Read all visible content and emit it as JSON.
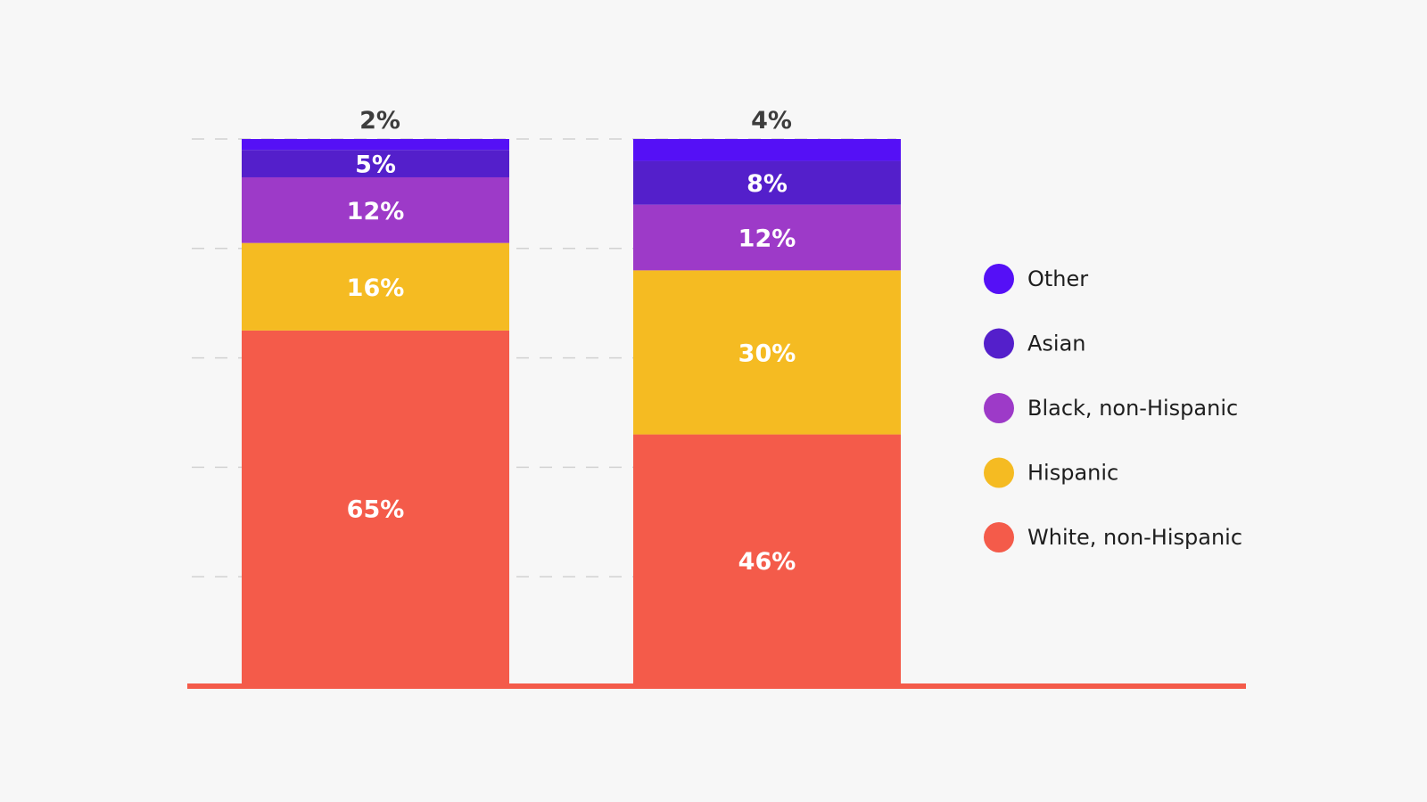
{
  "chart_data": {
    "type": "bar",
    "stacked": true,
    "categories": [
      "",
      ""
    ],
    "series": [
      {
        "name": "White, non-Hispanic",
        "color": "#f45b4a",
        "values": [
          65,
          46
        ]
      },
      {
        "name": "Hispanic",
        "color": "#f5bb22",
        "values": [
          16,
          30
        ]
      },
      {
        "name": "Black, non-Hispanic",
        "color": "#9d3ac8",
        "values": [
          12,
          12
        ]
      },
      {
        "name": "Asian",
        "color": "#541fcb",
        "values": [
          5,
          8
        ]
      },
      {
        "name": "Other",
        "color": "#5510f6",
        "values": [
          2,
          4
        ]
      }
    ],
    "data_labels": [
      [
        "65%",
        "16%",
        "12%",
        "5%",
        "2%"
      ],
      [
        "46%",
        "30%",
        "12%",
        "8%",
        "4%"
      ]
    ],
    "ylim": [
      0,
      100
    ],
    "grid": "dashed-horizontal",
    "legend_position": "right",
    "legend_order": [
      "Other",
      "Asian",
      "Black, non-Hispanic",
      "Hispanic",
      "White, non-Hispanic"
    ],
    "title": "",
    "xlabel": "",
    "ylabel": ""
  }
}
